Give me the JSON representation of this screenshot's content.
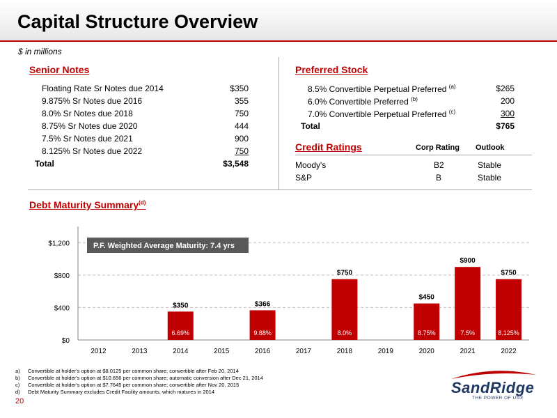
{
  "title": "Capital Structure Overview",
  "units": "$ in millions",
  "senior_notes": {
    "heading": "Senior Notes",
    "rows": [
      {
        "label": "Floating Rate Sr Notes due 2014",
        "value": "$350"
      },
      {
        "label": "9.875% Sr Notes due 2016",
        "value": "355"
      },
      {
        "label": "8.0% Sr Notes due 2018",
        "value": "750"
      },
      {
        "label": "8.75% Sr Notes due 2020",
        "value": "444"
      },
      {
        "label": "7.5% Sr Notes due 2021",
        "value": "900"
      },
      {
        "label": "8.125% Sr Notes due 2022",
        "value": "750"
      }
    ],
    "total_label": "Total",
    "total_value": "$3,548"
  },
  "preferred_stock": {
    "heading": "Preferred Stock",
    "rows": [
      {
        "label": "8.5% Convertible Perpetual Preferred",
        "note": "(a)",
        "value": "$265"
      },
      {
        "label": "6.0% Convertible Preferred",
        "note": "(b)",
        "value": "200"
      },
      {
        "label": "7.0% Convertible Perpetual Preferred",
        "note": "(c)",
        "value": "300"
      }
    ],
    "total_label": "Total",
    "total_value": "$765"
  },
  "credit_ratings": {
    "heading": "Credit Ratings",
    "col_corp": "Corp Rating",
    "col_outlook": "Outlook",
    "rows": [
      {
        "agency": "Moody's",
        "rating": "B2",
        "outlook": "Stable"
      },
      {
        "agency": "S&P",
        "rating": "B",
        "outlook": "Stable"
      }
    ]
  },
  "debt_maturity": {
    "heading": "Debt Maturity Summary",
    "heading_note": "(d)"
  },
  "chart_data": {
    "type": "bar",
    "annotation": "P.F. Weighted Average Maturity:    7.4 yrs",
    "categories": [
      "2012",
      "2013",
      "2014",
      "2015",
      "2016",
      "2017",
      "2018",
      "2019",
      "2020",
      "2021",
      "2022"
    ],
    "values": [
      0,
      0,
      350,
      0,
      366,
      0,
      750,
      0,
      450,
      900,
      750
    ],
    "value_labels": [
      "",
      "",
      "$350",
      "",
      "$366",
      "",
      "$750",
      "",
      "$450",
      "$900",
      "$750"
    ],
    "rate_labels": [
      "",
      "",
      "6.69%",
      "",
      "9.88%",
      "",
      "8.0%",
      "",
      "8.75%",
      "7.5%",
      "8.125%"
    ],
    "yticks": [
      0,
      400,
      800,
      1200
    ],
    "ytick_labels": [
      "$0",
      "$400",
      "$800",
      "$1,200"
    ],
    "ylim": [
      0,
      1400
    ],
    "grid": true,
    "bar_color": "#c00000"
  },
  "footnotes": [
    {
      "letter": "a)",
      "text": "Convertible at holder's option at $8.0125 per common share; convertible after Feb 20, 2014"
    },
    {
      "letter": "b)",
      "text": "Convertible at holder's option at $10.656 per common share; automatic conversion after Dec 21, 2014"
    },
    {
      "letter": "c)",
      "text": "Convertible at holder's option at $7.7645 per common share; convertible after Nov 20, 2015"
    },
    {
      "letter": "d)",
      "text": "Debt Maturity Summary excludes Credit Facility amounts, which matures in 2014"
    }
  ],
  "page_number": "20",
  "logo": {
    "name": "SandRidge",
    "tagline": "THE POWER OF US®"
  },
  "colors": {
    "accent": "#c00000",
    "logo": "#1f3864"
  }
}
